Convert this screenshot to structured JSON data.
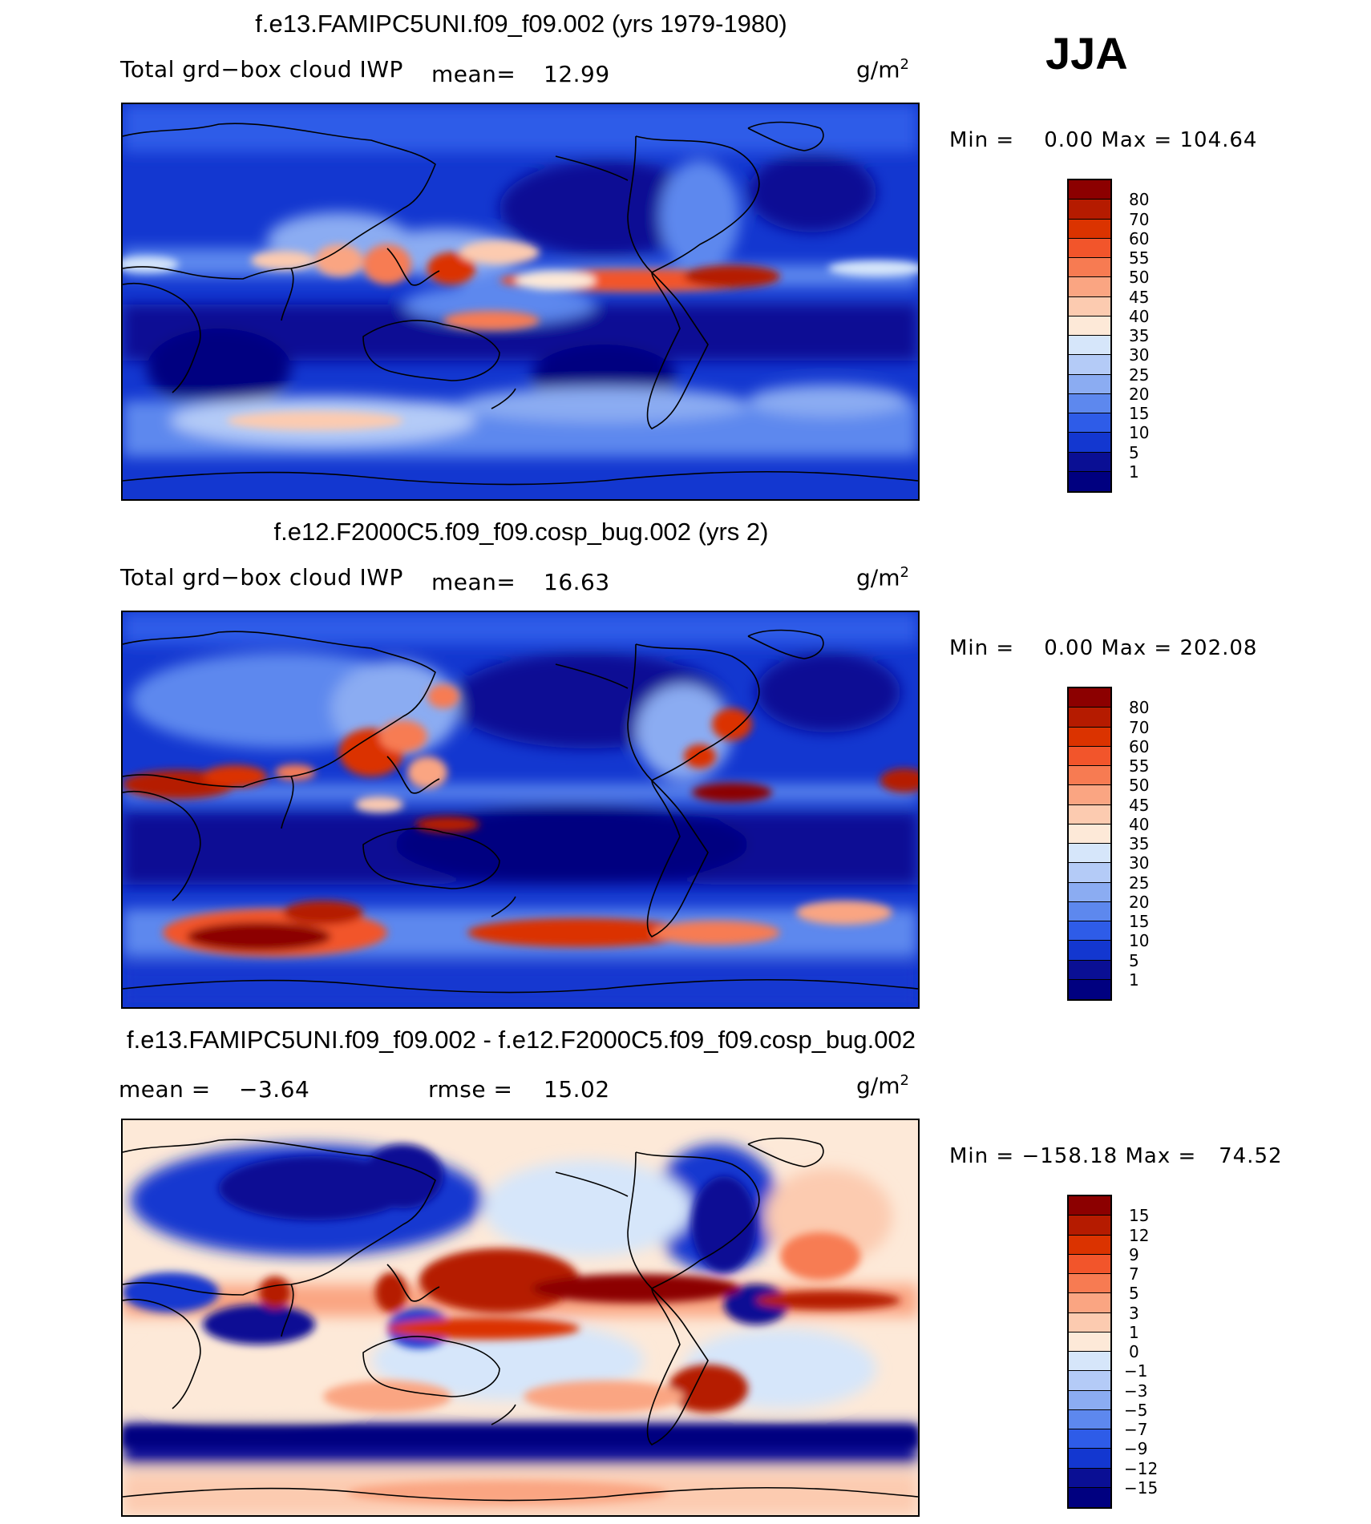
{
  "season": "JJA",
  "units_base": "g/m",
  "units_exp": "2",
  "panels": [
    {
      "title": "f.e13.FAMIPC5UNI.f09_f09.002 (yrs 1979-1980)",
      "variable": "Total grd−box cloud IWP",
      "mean_label": "mean=",
      "mean": "12.99",
      "min_label": "Min =",
      "min": "0.00",
      "max_label": "Max =",
      "max": "104.64",
      "levels": [
        "80",
        "70",
        "60",
        "55",
        "50",
        "45",
        "40",
        "35",
        "30",
        "25",
        "20",
        "15",
        "10",
        "5",
        "1"
      ],
      "colors": [
        "#8c0000",
        "#b51b00",
        "#db3300",
        "#f2552b",
        "#f77b52",
        "#faa582",
        "#fccbb0",
        "#fde9d8",
        "#d6e6fa",
        "#b4cbf7",
        "#8bacf2",
        "#5d88ee",
        "#2e5ce8",
        "#1337d0",
        "#0a0f94",
        "#000080"
      ]
    },
    {
      "title": "f.e12.F2000C5.f09_f09.cosp_bug.002 (yrs 2)",
      "variable": "Total grd−box cloud IWP",
      "mean_label": "mean=",
      "mean": "16.63",
      "min_label": "Min =",
      "min": "0.00",
      "max_label": "Max =",
      "max": "202.08",
      "levels": [
        "80",
        "70",
        "60",
        "55",
        "50",
        "45",
        "40",
        "35",
        "30",
        "25",
        "20",
        "15",
        "10",
        "5",
        "1"
      ],
      "colors": [
        "#8c0000",
        "#b51b00",
        "#db3300",
        "#f2552b",
        "#f77b52",
        "#faa582",
        "#fccbb0",
        "#fde9d8",
        "#d6e6fa",
        "#b4cbf7",
        "#8bacf2",
        "#5d88ee",
        "#2e5ce8",
        "#1337d0",
        "#0a0f94",
        "#000080"
      ]
    },
    {
      "title": "f.e13.FAMIPC5UNI.f09_f09.002 - f.e12.F2000C5.f09_f09.cosp_bug.002",
      "mean_label": "mean =",
      "mean": "−3.64",
      "rmse_label": "rmse =",
      "rmse": "15.02",
      "min_label": "Min =",
      "min": "−158.18",
      "max_label": "Max =",
      "max": "74.52",
      "levels": [
        "15",
        "12",
        "9",
        "7",
        "5",
        "3",
        "1",
        "0",
        "−1",
        "−3",
        "−5",
        "−7",
        "−9",
        "−12",
        "−15"
      ],
      "colors": [
        "#8c0000",
        "#b51b00",
        "#db3300",
        "#f2552b",
        "#f77b52",
        "#faa582",
        "#fccbb0",
        "#fde9d8",
        "#d6e6fa",
        "#b4cbf7",
        "#8bacf2",
        "#5d88ee",
        "#2e5ce8",
        "#1337d0",
        "#0a0f94",
        "#000080"
      ]
    }
  ]
}
